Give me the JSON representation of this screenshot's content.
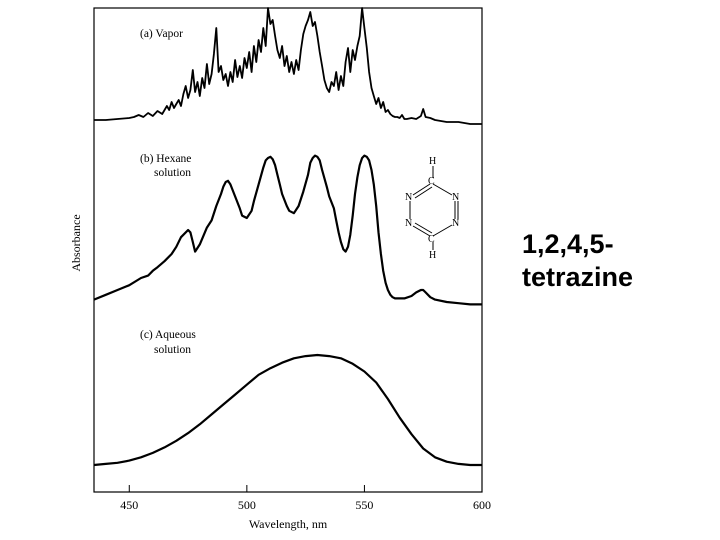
{
  "side_label": {
    "line1": "1,2,4,5-",
    "line2": "tetrazine"
  },
  "molecule": {
    "atoms": [
      "H",
      "C",
      "N",
      "N",
      "N",
      "N",
      "C",
      "H"
    ]
  },
  "chart_data": {
    "type": "line",
    "xlabel": "Wavelength, nm",
    "ylabel": "Absorbance",
    "xlim": [
      435,
      600
    ],
    "xticks": [
      450,
      500,
      550,
      600
    ],
    "grid": false,
    "legend": "none",
    "series": [
      {
        "name": "(a) Vapor",
        "x": [
          435,
          440,
          445,
          450,
          452,
          454,
          456,
          458,
          460,
          462,
          464,
          466,
          467,
          468,
          469,
          470,
          471,
          472,
          473,
          474,
          475,
          476,
          477,
          478,
          479,
          480,
          481,
          482,
          483,
          484,
          485,
          486,
          487,
          488,
          489,
          490,
          491,
          492,
          493,
          494,
          495,
          496,
          497,
          498,
          499,
          500,
          501,
          502,
          503,
          504,
          505,
          506,
          507,
          508,
          509,
          510,
          511,
          512,
          513,
          514,
          515,
          516,
          517,
          518,
          519,
          520,
          521,
          522,
          523,
          524,
          525,
          526,
          527,
          528,
          529,
          530,
          531,
          532,
          533,
          534,
          535,
          536,
          537,
          538,
          539,
          540,
          541,
          542,
          543,
          544,
          545,
          546,
          547,
          548,
          549,
          550,
          551,
          552,
          553,
          554,
          555,
          556,
          557,
          558,
          559,
          560,
          561,
          562,
          563,
          564,
          565,
          566,
          567,
          568,
          570,
          572,
          574,
          575,
          576,
          578,
          580,
          585,
          590,
          595,
          600
        ],
        "y": [
          0.02,
          0.02,
          0.03,
          0.04,
          0.05,
          0.07,
          0.05,
          0.09,
          0.06,
          0.11,
          0.08,
          0.16,
          0.12,
          0.2,
          0.14,
          0.18,
          0.22,
          0.16,
          0.28,
          0.36,
          0.24,
          0.32,
          0.52,
          0.3,
          0.4,
          0.26,
          0.44,
          0.34,
          0.58,
          0.38,
          0.48,
          0.68,
          0.94,
          0.5,
          0.56,
          0.42,
          0.48,
          0.36,
          0.5,
          0.4,
          0.62,
          0.45,
          0.56,
          0.44,
          0.64,
          0.54,
          0.7,
          0.5,
          0.76,
          0.6,
          0.82,
          0.7,
          0.94,
          0.76,
          1.14,
          0.98,
          1.02,
          0.86,
          0.72,
          0.64,
          0.76,
          0.56,
          0.66,
          0.5,
          0.6,
          0.48,
          0.62,
          0.52,
          0.72,
          0.88,
          0.96,
          1.02,
          1.1,
          0.96,
          1.0,
          0.86,
          0.7,
          0.56,
          0.42,
          0.34,
          0.3,
          0.4,
          0.36,
          0.5,
          0.32,
          0.46,
          0.36,
          0.6,
          0.74,
          0.5,
          0.72,
          0.62,
          0.76,
          0.86,
          1.14,
          0.94,
          0.74,
          0.5,
          0.34,
          0.26,
          0.18,
          0.24,
          0.14,
          0.2,
          0.1,
          0.12,
          0.08,
          0.06,
          0.05,
          0.05,
          0.04,
          0.07,
          0.03,
          0.03,
          0.04,
          0.03,
          0.06,
          0.13,
          0.05,
          0.04,
          0.02,
          0.0,
          0.0,
          -0.02,
          -0.02
        ]
      },
      {
        "name": "(b) Hexane solution",
        "x": [
          435,
          440,
          445,
          450,
          455,
          458,
          460,
          462,
          465,
          468,
          470,
          472,
          475,
          476,
          477,
          478,
          480,
          483,
          485,
          487,
          489,
          490,
          491,
          492,
          493,
          495,
          497,
          498,
          500,
          502,
          503,
          505,
          507,
          508,
          509,
          510,
          511,
          512,
          513,
          514,
          515,
          517,
          518,
          520,
          522,
          524,
          526,
          527,
          528,
          529,
          530,
          531,
          532,
          534,
          535,
          537,
          538,
          539,
          540,
          541,
          542,
          543,
          544,
          545,
          546,
          547,
          548,
          549,
          550,
          551,
          552,
          553,
          554,
          555,
          556,
          557,
          558,
          559,
          560,
          561,
          562,
          563,
          565,
          567,
          570,
          572,
          574,
          575,
          576,
          578,
          580,
          585,
          590,
          595,
          600
        ],
        "y": [
          0.02,
          0.06,
          0.1,
          0.14,
          0.2,
          0.22,
          0.26,
          0.29,
          0.34,
          0.4,
          0.46,
          0.54,
          0.6,
          0.58,
          0.5,
          0.42,
          0.48,
          0.62,
          0.68,
          0.8,
          0.9,
          0.96,
          1.0,
          1.01,
          0.98,
          0.88,
          0.78,
          0.72,
          0.7,
          0.76,
          0.84,
          0.98,
          1.12,
          1.18,
          1.2,
          1.21,
          1.19,
          1.14,
          1.06,
          0.98,
          0.9,
          0.8,
          0.76,
          0.74,
          0.8,
          0.92,
          1.06,
          1.16,
          1.2,
          1.22,
          1.21,
          1.18,
          1.1,
          0.96,
          0.88,
          0.78,
          0.68,
          0.58,
          0.5,
          0.44,
          0.42,
          0.46,
          0.56,
          0.72,
          0.9,
          1.04,
          1.14,
          1.2,
          1.22,
          1.21,
          1.18,
          1.1,
          0.98,
          0.8,
          0.58,
          0.4,
          0.26,
          0.16,
          0.1,
          0.06,
          0.04,
          0.03,
          0.03,
          0.03,
          0.05,
          0.08,
          0.1,
          0.1,
          0.08,
          0.04,
          0.02,
          0.0,
          -0.01,
          -0.02,
          -0.02
        ]
      },
      {
        "name": "(c) Aqueous solution",
        "x": [
          435,
          440,
          445,
          450,
          455,
          460,
          465,
          470,
          475,
          480,
          485,
          490,
          495,
          500,
          505,
          510,
          515,
          520,
          525,
          530,
          535,
          540,
          545,
          550,
          555,
          560,
          565,
          570,
          575,
          580,
          585,
          590,
          595,
          600
        ],
        "y": [
          0.0,
          0.01,
          0.02,
          0.04,
          0.07,
          0.11,
          0.16,
          0.22,
          0.29,
          0.37,
          0.46,
          0.55,
          0.64,
          0.73,
          0.82,
          0.88,
          0.93,
          0.97,
          0.99,
          1.0,
          0.99,
          0.97,
          0.92,
          0.85,
          0.75,
          0.6,
          0.43,
          0.28,
          0.15,
          0.07,
          0.03,
          0.01,
          0.0,
          0.0
        ]
      }
    ]
  }
}
